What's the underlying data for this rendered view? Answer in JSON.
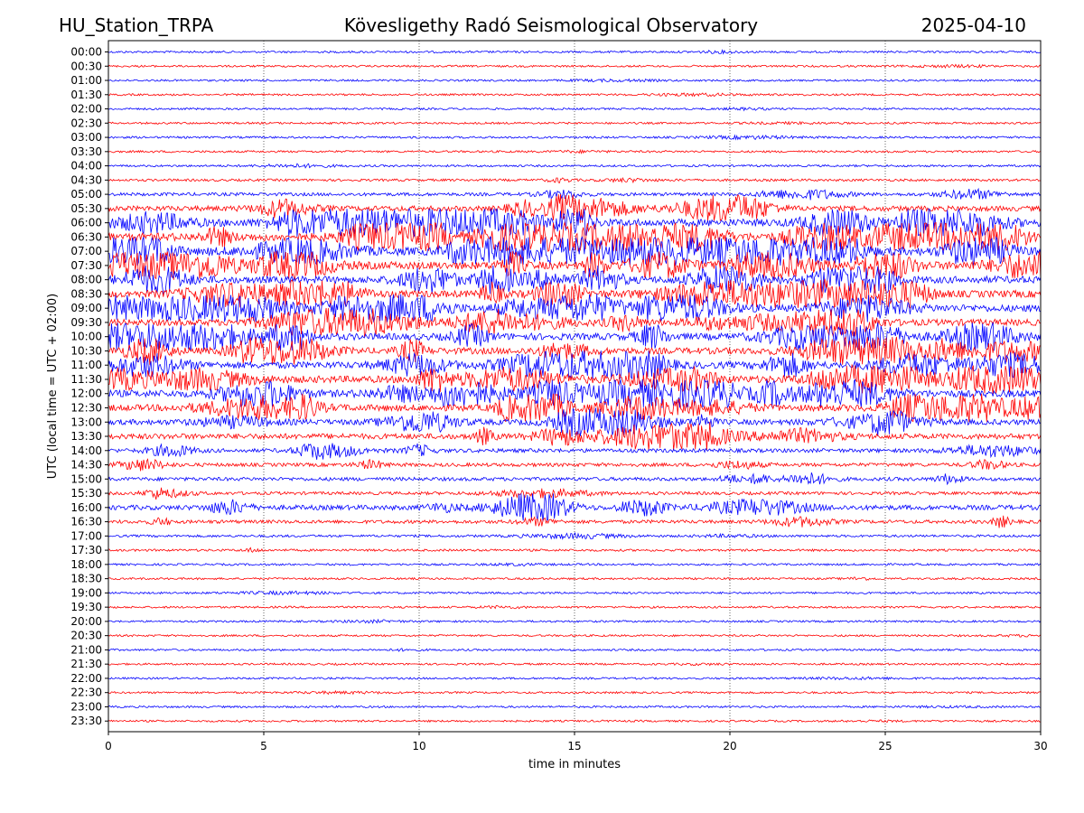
{
  "header": {
    "station": "HU_Station_TRPA",
    "observatory": "Kövesligethy Radó Seismological Observatory",
    "date": "2025-04-10"
  },
  "chart_data": {
    "type": "line",
    "description_kind": "helicorder",
    "xlabel": "time in minutes",
    "ylabel": "UTC (local time = UTC + 02:00)",
    "xlim": [
      0,
      30
    ],
    "x_ticks": [
      0,
      5,
      10,
      15,
      20,
      25,
      30
    ],
    "grid": "vertical dotted lines at 5, 10, 15, 20, 25 minutes",
    "colors": {
      "even_trace": "#0000ff",
      "odd_trace": "#ff0000"
    },
    "rows": [
      {
        "label": "00:00",
        "activity": 0.06
      },
      {
        "label": "00:30",
        "activity": 0.05
      },
      {
        "label": "01:00",
        "activity": 0.05
      },
      {
        "label": "01:30",
        "activity": 0.05
      },
      {
        "label": "02:00",
        "activity": 0.05
      },
      {
        "label": "02:30",
        "activity": 0.05
      },
      {
        "label": "03:00",
        "activity": 0.07
      },
      {
        "label": "03:30",
        "activity": 0.07
      },
      {
        "label": "04:00",
        "activity": 0.07
      },
      {
        "label": "04:30",
        "activity": 0.12
      },
      {
        "label": "05:00",
        "activity": 0.25
      },
      {
        "label": "05:30",
        "activity": 0.55
      },
      {
        "label": "06:00",
        "activity": 0.9
      },
      {
        "label": "06:30",
        "activity": 1.0
      },
      {
        "label": "07:00",
        "activity": 1.0
      },
      {
        "label": "07:30",
        "activity": 0.95
      },
      {
        "label": "08:00",
        "activity": 0.85
      },
      {
        "label": "08:30",
        "activity": 0.85
      },
      {
        "label": "09:00",
        "activity": 0.85
      },
      {
        "label": "09:30",
        "activity": 0.75
      },
      {
        "label": "10:00",
        "activity": 0.8
      },
      {
        "label": "10:30",
        "activity": 0.75
      },
      {
        "label": "11:00",
        "activity": 0.8
      },
      {
        "label": "11:30",
        "activity": 0.85
      },
      {
        "label": "12:00",
        "activity": 0.85
      },
      {
        "label": "12:30",
        "activity": 0.75
      },
      {
        "label": "13:00",
        "activity": 0.6
      },
      {
        "label": "13:30",
        "activity": 0.6
      },
      {
        "label": "14:00",
        "activity": 0.35
      },
      {
        "label": "14:30",
        "activity": 0.3
      },
      {
        "label": "15:00",
        "activity": 0.3
      },
      {
        "label": "15:30",
        "activity": 0.22
      },
      {
        "label": "16:00",
        "activity": 0.5
      },
      {
        "label": "16:30",
        "activity": 0.28
      },
      {
        "label": "17:00",
        "activity": 0.12
      },
      {
        "label": "17:30",
        "activity": 0.1
      },
      {
        "label": "18:00",
        "activity": 0.06
      },
      {
        "label": "18:30",
        "activity": 0.06
      },
      {
        "label": "19:00",
        "activity": 0.06
      },
      {
        "label": "19:30",
        "activity": 0.06
      },
      {
        "label": "20:00",
        "activity": 0.05
      },
      {
        "label": "20:30",
        "activity": 0.05
      },
      {
        "label": "21:00",
        "activity": 0.05
      },
      {
        "label": "21:30",
        "activity": 0.05
      },
      {
        "label": "22:00",
        "activity": 0.05
      },
      {
        "label": "22:30",
        "activity": 0.05
      },
      {
        "label": "23:00",
        "activity": 0.05
      },
      {
        "label": "23:30",
        "activity": 0.05
      }
    ]
  }
}
